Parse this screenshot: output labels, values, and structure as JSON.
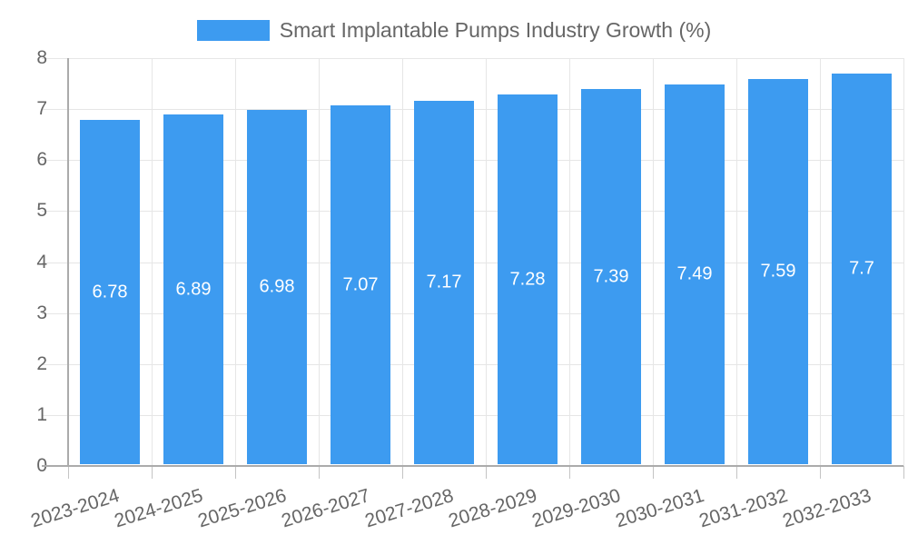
{
  "chart_data": {
    "type": "bar",
    "title": "Smart Implantable Pumps Industry Growth (%)",
    "categories": [
      "2023-2024",
      "2024-2025",
      "2025-2026",
      "2026-2027",
      "2027-2028",
      "2028-2029",
      "2029-2030",
      "2030-2031",
      "2031-2032",
      "2032-2033"
    ],
    "values": [
      6.78,
      6.89,
      6.98,
      7.07,
      7.17,
      7.28,
      7.39,
      7.49,
      7.59,
      7.7
    ],
    "xlabel": "",
    "ylabel": "",
    "ylim": [
      0,
      8
    ],
    "y_ticks": [
      0,
      1,
      2,
      3,
      4,
      5,
      6,
      7,
      8
    ],
    "grid": true,
    "legend_position": "top-center",
    "colors": {
      "bar": "#3d9bf0",
      "axis": "#ababab",
      "gridline": "#e6e6e6",
      "tick": "#c4c4c4",
      "text": "#666666",
      "bar_label": "#ffffff"
    }
  }
}
